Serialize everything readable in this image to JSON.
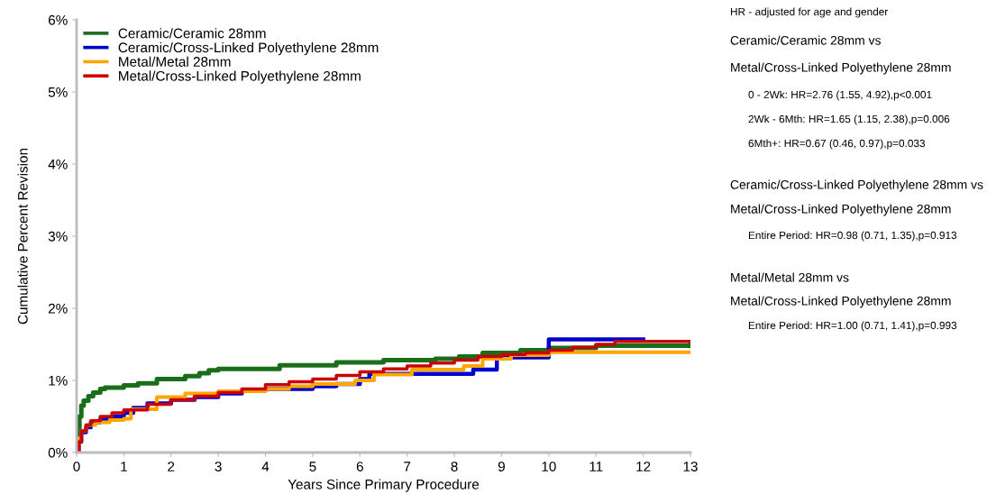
{
  "chart_data": {
    "type": "step",
    "xlabel": "Years Since Primary Procedure",
    "ylabel": "Cumulative Percent Revision",
    "xlim": [
      0,
      13
    ],
    "xticks": [
      0,
      1,
      2,
      3,
      4,
      5,
      6,
      7,
      8,
      9,
      10,
      11,
      12,
      13
    ],
    "ylim": [
      0,
      6
    ],
    "yticks": [
      {
        "value": 0,
        "label": "0%"
      },
      {
        "value": 1,
        "label": "1%"
      },
      {
        "value": 2,
        "label": "2%"
      },
      {
        "value": 3,
        "label": "3%"
      },
      {
        "value": 4,
        "label": "4%"
      },
      {
        "value": 5,
        "label": "5%"
      },
      {
        "value": 6,
        "label": "6%"
      }
    ],
    "grid": false,
    "legend": "top left",
    "marker": "none",
    "line_style": "solid",
    "series": [
      {
        "name": "Ceramic/Ceramic 28mm",
        "color": "#1a6e1a",
        "x": [
          0,
          0.03,
          0.06,
          0.1,
          0.15,
          0.25,
          0.35,
          0.5,
          0.6,
          1.0,
          1.3,
          1.7,
          2.3,
          2.6,
          2.8,
          3.0,
          4.3,
          5.5,
          6.5,
          7.6,
          8.1,
          8.6,
          9.4,
          10.0,
          11.0,
          13.0
        ],
        "values": [
          0,
          0.3,
          0.5,
          0.65,
          0.72,
          0.78,
          0.83,
          0.88,
          0.9,
          0.93,
          0.96,
          1.02,
          1.06,
          1.1,
          1.14,
          1.16,
          1.21,
          1.25,
          1.28,
          1.3,
          1.33,
          1.38,
          1.42,
          1.45,
          1.48,
          1.52
        ]
      },
      {
        "name": "Ceramic/Cross-Linked Polyethylene 28mm",
        "color": "#0000cc",
        "x": [
          0,
          0.05,
          0.1,
          0.2,
          0.3,
          0.5,
          0.8,
          1.0,
          1.2,
          1.5,
          2.0,
          2.5,
          3.0,
          3.5,
          4.0,
          5.0,
          5.5,
          6.0,
          6.2,
          8.4,
          8.9,
          10.0,
          12.0
        ],
        "values": [
          0,
          0.15,
          0.28,
          0.35,
          0.42,
          0.46,
          0.5,
          0.55,
          0.62,
          0.68,
          0.73,
          0.77,
          0.82,
          0.86,
          0.88,
          0.92,
          0.95,
          1.02,
          1.09,
          1.15,
          1.32,
          1.57,
          1.57
        ]
      },
      {
        "name": "Metal/Metal 28mm",
        "color": "#ffa500",
        "x": [
          0,
          0.05,
          0.1,
          0.2,
          0.4,
          0.7,
          1.0,
          1.15,
          1.7,
          2.3,
          3.0,
          4.0,
          4.5,
          5.0,
          5.9,
          6.3,
          7.1,
          8.2,
          8.6,
          9.2,
          10.0,
          13.0
        ],
        "values": [
          0,
          0.2,
          0.3,
          0.38,
          0.42,
          0.45,
          0.47,
          0.6,
          0.77,
          0.82,
          0.85,
          0.88,
          0.92,
          0.95,
          1.0,
          1.08,
          1.15,
          1.2,
          1.3,
          1.35,
          1.39,
          1.39
        ]
      },
      {
        "name": "Metal/Cross-Linked Polyethylene 28mm",
        "color": "#cc0000",
        "x": [
          0,
          0.05,
          0.1,
          0.2,
          0.3,
          0.5,
          0.75,
          1.0,
          1.5,
          2.0,
          2.5,
          3.0,
          3.5,
          4.0,
          4.5,
          5.0,
          5.5,
          6.0,
          6.5,
          7.0,
          7.5,
          8.0,
          8.5,
          9.0,
          9.5,
          10.0,
          10.5,
          11.0,
          11.4,
          13.0
        ],
        "values": [
          0,
          0.15,
          0.3,
          0.38,
          0.44,
          0.5,
          0.55,
          0.59,
          0.67,
          0.73,
          0.78,
          0.83,
          0.88,
          0.94,
          0.98,
          1.02,
          1.07,
          1.12,
          1.16,
          1.2,
          1.24,
          1.28,
          1.33,
          1.36,
          1.38,
          1.42,
          1.46,
          1.5,
          1.54,
          1.54
        ]
      }
    ],
    "annotations": [
      "HR - adjusted for age and gender",
      "Ceramic/Ceramic 28mm vs",
      "Metal/Cross-Linked Polyethylene 28mm",
      "0 - 2Wk: HR=2.76 (1.55, 4.92),p<0.001",
      "2Wk - 6Mth: HR=1.65 (1.15, 2.38),p=0.006",
      "6Mth+: HR=0.67 (0.46, 0.97),p=0.033",
      "Ceramic/Cross-Linked Polyethylene 28mm vs",
      "Metal/Cross-Linked Polyethylene 28mm",
      "Entire Period: HR=0.98 (0.71, 1.35),p=0.913",
      "Metal/Metal 28mm vs",
      "Metal/Cross-Linked Polyethylene 28mm",
      "Entire Period: HR=1.00 (0.71, 1.41),p=0.993"
    ]
  }
}
